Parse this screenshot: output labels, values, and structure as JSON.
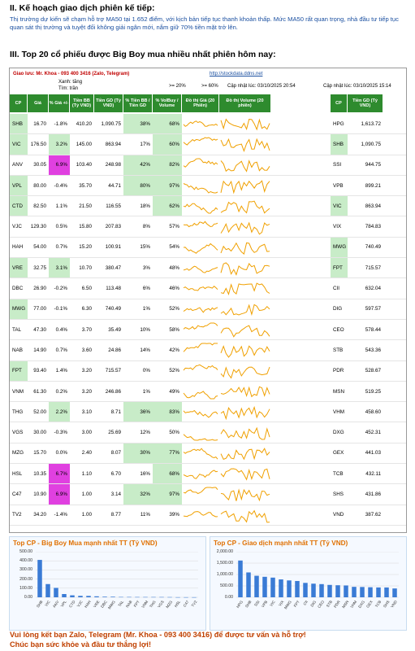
{
  "section2": {
    "title": "II. Kế hoạch giao dịch phiên kế tiếp:",
    "text": "Thị trường dự kiến sẽ chạm hỗ trợ MA50 tại 1.652 điểm, với kịch bản tiếp tục thanh khoản thấp. Mức MA50 rất quan trọng, nhà đầu tư tiếp tục quan sát thị trường và tuyệt đối không giải ngân mới, nắm giữ 70% tiền mặt trở lên."
  },
  "section3": {
    "title": "III. Top 20 cổ phiếu được Big Boy mua nhiều nhất phiên hôm nay:"
  },
  "board": {
    "contact": "Giao lưu: Mr. Khoa - 093 400 3416 (Zalo, Telegram)",
    "link": "http://stockdata.ddns.net",
    "legend_up": "Xanh: tăng",
    "legend_ref": "Tím: trần",
    "threshold1": ">= 20%",
    "threshold2": ">= 60%",
    "updated1": "Cập nhật lúc: 03/10/2025 20:54",
    "updated2": "Cập nhật lúc: 03/10/2025 15:14",
    "headers": [
      "CP",
      "Giá",
      "% Giá +/-",
      "Tiền BB (Tỷ VND)",
      "Tiền GD (Tỷ VND)",
      "% Tiền BB / Tiền GD",
      "% VolBuy / Volume",
      "Đồ thị Giá (20 Phiên)",
      "Đồ thị Volume (20 phiên)",
      "CP",
      "Tiền GD (Tỷ VND)"
    ],
    "rows": [
      {
        "cp": "SHB",
        "price": "16.70",
        "chg": "-1.8%",
        "bb": "410.20",
        "gd": "1,090.75",
        "bbpct": "38%",
        "vol": "68%",
        "cp2": "HPG",
        "gd2": "1,613.72"
      },
      {
        "cp": "VIC",
        "price": "176.50",
        "chg": "3.2%",
        "bb": "145.00",
        "gd": "863.94",
        "bbpct": "17%",
        "vol": "60%",
        "cp2": "SHB",
        "gd2": "1,090.75"
      },
      {
        "cp": "ANV",
        "price": "30.05",
        "chg": "6.9%",
        "bb": "103.40",
        "gd": "248.98",
        "bbpct": "42%",
        "vol": "82%",
        "cp2": "SSI",
        "gd2": "944.75"
      },
      {
        "cp": "VPL",
        "price": "80.00",
        "chg": "-0.4%",
        "bb": "35.70",
        "gd": "44.71",
        "bbpct": "80%",
        "vol": "97%",
        "cp2": "VPB",
        "gd2": "899.21"
      },
      {
        "cp": "CTD",
        "price": "82.50",
        "chg": "1.1%",
        "bb": "21.50",
        "gd": "116.55",
        "bbpct": "18%",
        "vol": "62%",
        "cp2": "VIC",
        "gd2": "863.94"
      },
      {
        "cp": "VJC",
        "price": "129.30",
        "chg": "0.5%",
        "bb": "15.80",
        "gd": "207.83",
        "bbpct": "8%",
        "vol": "57%",
        "cp2": "VIX",
        "gd2": "784.83"
      },
      {
        "cp": "HAH",
        "price": "54.00",
        "chg": "0.7%",
        "bb": "15.20",
        "gd": "100.91",
        "bbpct": "15%",
        "vol": "54%",
        "cp2": "MWG",
        "gd2": "740.49"
      },
      {
        "cp": "VRE",
        "price": "32.75",
        "chg": "3.1%",
        "bb": "10.70",
        "gd": "380.47",
        "bbpct": "3%",
        "vol": "48%",
        "cp2": "FPT",
        "gd2": "715.57"
      },
      {
        "cp": "DBC",
        "price": "26.90",
        "chg": "-0.2%",
        "bb": "6.50",
        "gd": "113.48",
        "bbpct": "6%",
        "vol": "46%",
        "cp2": "CII",
        "gd2": "632.04"
      },
      {
        "cp": "MWG",
        "price": "77.00",
        "chg": "-0.1%",
        "bb": "6.30",
        "gd": "740.49",
        "bbpct": "1%",
        "vol": "52%",
        "cp2": "DIG",
        "gd2": "597.57"
      },
      {
        "cp": "TAL",
        "price": "47.30",
        "chg": "0.4%",
        "bb": "3.70",
        "gd": "35.49",
        "bbpct": "10%",
        "vol": "58%",
        "cp2": "CEO",
        "gd2": "578.44"
      },
      {
        "cp": "NAB",
        "price": "14.90",
        "chg": "0.7%",
        "bb": "3.60",
        "gd": "24.86",
        "bbpct": "14%",
        "vol": "42%",
        "cp2": "STB",
        "gd2": "543.36"
      },
      {
        "cp": "FPT",
        "price": "93.40",
        "chg": "1.4%",
        "bb": "3.20",
        "gd": "715.57",
        "bbpct": "0%",
        "vol": "52%",
        "cp2": "PDR",
        "gd2": "528.67"
      },
      {
        "cp": "VNM",
        "price": "61.30",
        "chg": "0.2%",
        "bb": "3.20",
        "gd": "246.86",
        "bbpct": "1%",
        "vol": "49%",
        "cp2": "MSN",
        "gd2": "519.25"
      },
      {
        "cp": "THG",
        "price": "52.00",
        "chg": "2.2%",
        "bb": "3.10",
        "gd": "8.71",
        "bbpct": "36%",
        "vol": "83%",
        "cp2": "VHM",
        "gd2": "458.60"
      },
      {
        "cp": "VGS",
        "price": "30.00",
        "chg": "-0.3%",
        "bb": "3.00",
        "gd": "25.69",
        "bbpct": "12%",
        "vol": "50%",
        "cp2": "DXG",
        "gd2": "452.31"
      },
      {
        "cp": "MZG",
        "price": "15.70",
        "chg": "0.0%",
        "bb": "2.40",
        "gd": "8.07",
        "bbpct": "30%",
        "vol": "77%",
        "cp2": "GEX",
        "gd2": "441.03"
      },
      {
        "cp": "HSL",
        "price": "10.35",
        "chg": "6.7%",
        "bb": "1.10",
        "gd": "6.70",
        "bbpct": "16%",
        "vol": "68%",
        "cp2": "TCB",
        "gd2": "432.11"
      },
      {
        "cp": "C47",
        "price": "10.90",
        "chg": "6.9%",
        "bb": "1.00",
        "gd": "3.14",
        "bbpct": "32%",
        "vol": "97%",
        "cp2": "SHS",
        "gd2": "431.86"
      },
      {
        "cp": "TV2",
        "price": "34.20",
        "chg": "-1.4%",
        "bb": "1.00",
        "gd": "8.77",
        "bbpct": "11%",
        "vol": "39%",
        "cp2": "VND",
        "gd2": "387.62"
      }
    ]
  },
  "colors": {
    "header_green": "#2e8b2e",
    "up_green": "#c8ecc8",
    "ceiling_purple": "#e040e0",
    "highlight_green": "#9fe89f",
    "spark_orange": "#f0a000",
    "bar_blue": "#3a7bd5"
  },
  "chart_data": [
    {
      "type": "bar",
      "title": "Top CP - Big Boy Mua mạnh nhất TT (Tỷ VND)",
      "categories": [
        "SHB",
        "VIC",
        "ANV",
        "VPL",
        "CTD",
        "VJC",
        "HAH",
        "VRE",
        "DBC",
        "MWG",
        "TAL",
        "NAB",
        "FPT",
        "VNM",
        "THG",
        "VGS",
        "MZG",
        "HSL",
        "C47",
        "TV2"
      ],
      "values": [
        410.2,
        145,
        103.4,
        35.7,
        21.5,
        15.8,
        15.2,
        10.7,
        6.5,
        6.3,
        3.7,
        3.6,
        3.2,
        3.2,
        3.1,
        3.0,
        2.4,
        1.1,
        1.0,
        1.0
      ],
      "ylim": [
        0,
        500
      ],
      "yticks": [
        "500.00",
        "400.00",
        "300.00",
        "200.00",
        "100.00",
        "0.00"
      ]
    },
    {
      "type": "bar",
      "title": "Top CP - Giao dịch mạnh nhất TT (Tỷ VND)",
      "categories": [
        "HPG",
        "SHB",
        "SSI",
        "VPB",
        "VIC",
        "VIX",
        "MWG",
        "FPT",
        "CII",
        "DIG",
        "CEO",
        "STB",
        "PDR",
        "MSN",
        "VHM",
        "DXG",
        "GEX",
        "TCB",
        "SHS",
        "VND"
      ],
      "values": [
        1613.72,
        1090.75,
        944.75,
        899.21,
        863.94,
        784.83,
        740.49,
        715.57,
        632.04,
        597.57,
        578.44,
        543.36,
        528.67,
        519.25,
        458.6,
        452.31,
        441.03,
        432.11,
        431.86,
        387.62
      ],
      "ylim": [
        0,
        2000
      ],
      "yticks": [
        "2,000.00",
        "1,500.00",
        "1,000.00",
        "500.00",
        "0.00"
      ]
    }
  ],
  "footer": {
    "line1": "Vui lòng kết bạn Zalo, Telegram (Mr. Khoa - 093 400 3416) để được tư vấn và hỗ trợ!",
    "line2": "Chúc bạn sức khỏe và đầu tư thắng lợi!"
  }
}
